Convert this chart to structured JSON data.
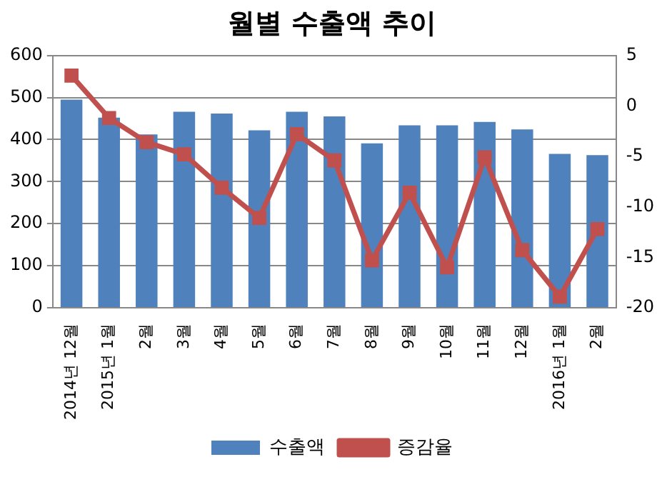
{
  "chart_data": {
    "type": "bar",
    "title": "월별 수출액 추이",
    "categories": [
      "2014년 12월",
      "2015년 1월",
      "2월",
      "3월",
      "4월",
      "5월",
      "6월",
      "7월",
      "8월",
      "9월",
      "10월",
      "11월",
      "12월",
      "2016년 1월",
      "2월"
    ],
    "series": [
      {
        "name": "수출액",
        "color": "#4f81bd",
        "values": [
          495,
          452,
          412,
          466,
          462,
          422,
          466,
          455,
          391,
          434,
          434,
          442,
          424,
          366,
          363
        ]
      },
      {
        "name": "증감율",
        "type": "line",
        "axis": "y2",
        "color": "#c0504d",
        "marker": "square",
        "values": [
          3.0,
          -1.2,
          -3.6,
          -4.8,
          -8.1,
          -11.1,
          -2.8,
          -5.4,
          -15.3,
          -8.6,
          -16.0,
          -5.1,
          -14.3,
          -18.9,
          -12.2
        ]
      }
    ],
    "ylim": [
      0,
      600
    ],
    "yticks": [
      0,
      100,
      200,
      300,
      400,
      500,
      600
    ],
    "y2lim": [
      -20,
      5
    ],
    "y2ticks": [
      -20,
      -15,
      -10,
      -5,
      0,
      5
    ],
    "grid": "y",
    "legend": "bottom"
  }
}
